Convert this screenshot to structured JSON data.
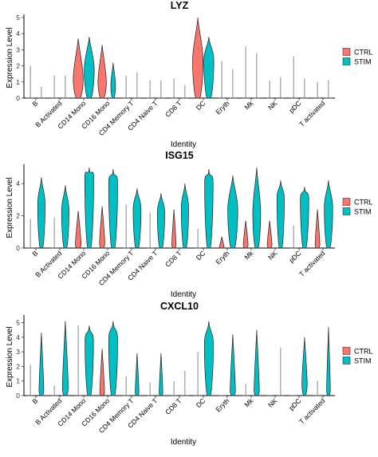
{
  "figure": {
    "shared": {
      "ylabel": "Expression Level",
      "xlabel": "Identity",
      "categories": [
        "B",
        "B Activated",
        "CD14 Mono",
        "CD16 Mono",
        "CD4 Memory T",
        "CD4 Naive T",
        "CD8 T",
        "DC",
        "Eryth",
        "Mk",
        "NK",
        "pDC",
        "T activated"
      ],
      "legend": [
        {
          "name": "CTRL",
          "color": "#F8766D"
        },
        {
          "name": "STIM",
          "color": "#00BFC4"
        }
      ],
      "legend_position": "right"
    }
  },
  "chart_data": [
    {
      "type": "violin",
      "title": "LYZ",
      "xlabel": "Identity",
      "ylabel": "Expression Level",
      "ylim": [
        0,
        5
      ],
      "yticks": [
        0,
        1,
        2,
        3,
        4,
        5
      ],
      "categories": [
        "B",
        "B Activated",
        "CD14 Mono",
        "CD16 Mono",
        "CD4 Memory T",
        "CD4 Naive T",
        "CD8 T",
        "DC",
        "Eryth",
        "Mk",
        "NK",
        "pDC",
        "T activated"
      ],
      "series": [
        {
          "name": "CTRL",
          "color": "#F8766D",
          "max": [
            2.0,
            1.4,
            3.7,
            3.3,
            1.4,
            1.1,
            1.2,
            5.0,
            2.3,
            3.2,
            1.1,
            2.6,
            1.0
          ],
          "width": [
            0.0,
            0.0,
            0.95,
            0.8,
            0.0,
            0.0,
            0.02,
            1.0,
            0.0,
            0.0,
            0.0,
            0.0,
            0.0
          ],
          "peak": [
            0,
            0,
            1.2,
            1.0,
            0,
            0,
            0,
            2.3,
            0,
            0,
            0,
            0,
            0
          ]
        },
        {
          "name": "STIM",
          "color": "#00BFC4",
          "max": [
            0.7,
            1.4,
            3.8,
            2.2,
            1.6,
            1.1,
            0.8,
            3.8,
            1.8,
            2.8,
            1.3,
            1.2,
            1.1
          ],
          "width": [
            0.0,
            0.0,
            0.95,
            0.45,
            0.0,
            0.0,
            0.0,
            0.95,
            0.0,
            0.0,
            0.0,
            0.0,
            0.0
          ],
          "peak": [
            0,
            0,
            1.8,
            0.8,
            0,
            0,
            0,
            2.3,
            0,
            0,
            0,
            0,
            0
          ]
        }
      ]
    },
    {
      "type": "violin",
      "title": "ISG15",
      "xlabel": "Identity",
      "ylabel": "Expression Level",
      "ylim": [
        0,
        5
      ],
      "yticks": [
        0,
        2,
        4
      ],
      "categories": [
        "B",
        "B Activated",
        "CD14 Mono",
        "CD16 Mono",
        "CD4 Memory T",
        "CD4 Naive T",
        "CD8 T",
        "DC",
        "Eryth",
        "Mk",
        "NK",
        "pDC",
        "T activated"
      ],
      "series": [
        {
          "name": "CTRL",
          "color": "#F8766D",
          "max": [
            1.8,
            1.9,
            2.3,
            2.6,
            2.7,
            2.2,
            2.4,
            1.2,
            0.7,
            1.7,
            1.7,
            1.4,
            2.4
          ],
          "width": [
            0.05,
            0.05,
            0.55,
            0.5,
            0.05,
            0.05,
            0.4,
            0.0,
            0.45,
            0.45,
            0.45,
            0.05,
            0.45
          ],
          "peak": [
            0,
            0,
            0.2,
            0.3,
            0,
            0,
            0.2,
            0,
            0,
            0.2,
            0.2,
            0,
            0.2
          ]
        },
        {
          "name": "STIM",
          "color": "#00BFC4",
          "max": [
            4.4,
            3.9,
            5.0,
            4.9,
            3.7,
            3.4,
            4.0,
            4.9,
            4.5,
            5.0,
            4.2,
            3.8,
            4.2
          ],
          "width": [
            0.7,
            0.7,
            0.85,
            0.85,
            0.75,
            0.7,
            0.7,
            0.8,
            0.95,
            0.75,
            0.7,
            0.8,
            0.8
          ],
          "peak": [
            2.7,
            2.3,
            4.3,
            4.0,
            2.4,
            2.2,
            2.5,
            4.0,
            2.4,
            2.2,
            3.0,
            3.0,
            2.5
          ]
        }
      ]
    },
    {
      "type": "violin",
      "title": "CXCL10",
      "xlabel": "Identity",
      "ylabel": "Expression Level",
      "ylim": [
        0,
        5.3
      ],
      "yticks": [
        0,
        1,
        2,
        3,
        4,
        5
      ],
      "categories": [
        "B",
        "B Activated",
        "CD14 Mono",
        "CD16 Mono",
        "CD4 Memory T",
        "CD4 Naive T",
        "CD8 T",
        "DC",
        "Eryth",
        "Mk",
        "NK",
        "pDC",
        "T activated"
      ],
      "series": [
        {
          "name": "CTRL",
          "color": "#F8766D",
          "max": [
            2.1,
            0.7,
            4.8,
            3.2,
            1.3,
            0.9,
            1.0,
            3.0,
            0.0,
            0.8,
            0.0,
            0.0,
            1.0
          ],
          "width": [
            0.0,
            0.0,
            0.0,
            0.45,
            0.0,
            0.0,
            0.0,
            0.0,
            0.0,
            0.0,
            0.0,
            0.0,
            0.0
          ],
          "peak": [
            0,
            0,
            0,
            0.2,
            0,
            0,
            0,
            0,
            0,
            0,
            0,
            0,
            0
          ]
        },
        {
          "name": "STIM",
          "color": "#00BFC4",
          "max": [
            4.3,
            5.1,
            4.8,
            5.1,
            2.9,
            2.9,
            1.7,
            5.1,
            4.2,
            4.5,
            3.3,
            4.0,
            4.7
          ],
          "width": [
            0.45,
            0.55,
            0.8,
            0.85,
            0.35,
            0.35,
            0.0,
            0.85,
            0.5,
            0.5,
            0.0,
            0.5,
            0.35
          ],
          "peak": [
            0.3,
            0.5,
            3.7,
            3.8,
            0.2,
            0.2,
            0,
            3.5,
            0.3,
            0.3,
            0,
            0.8,
            0.4
          ]
        }
      ]
    }
  ]
}
